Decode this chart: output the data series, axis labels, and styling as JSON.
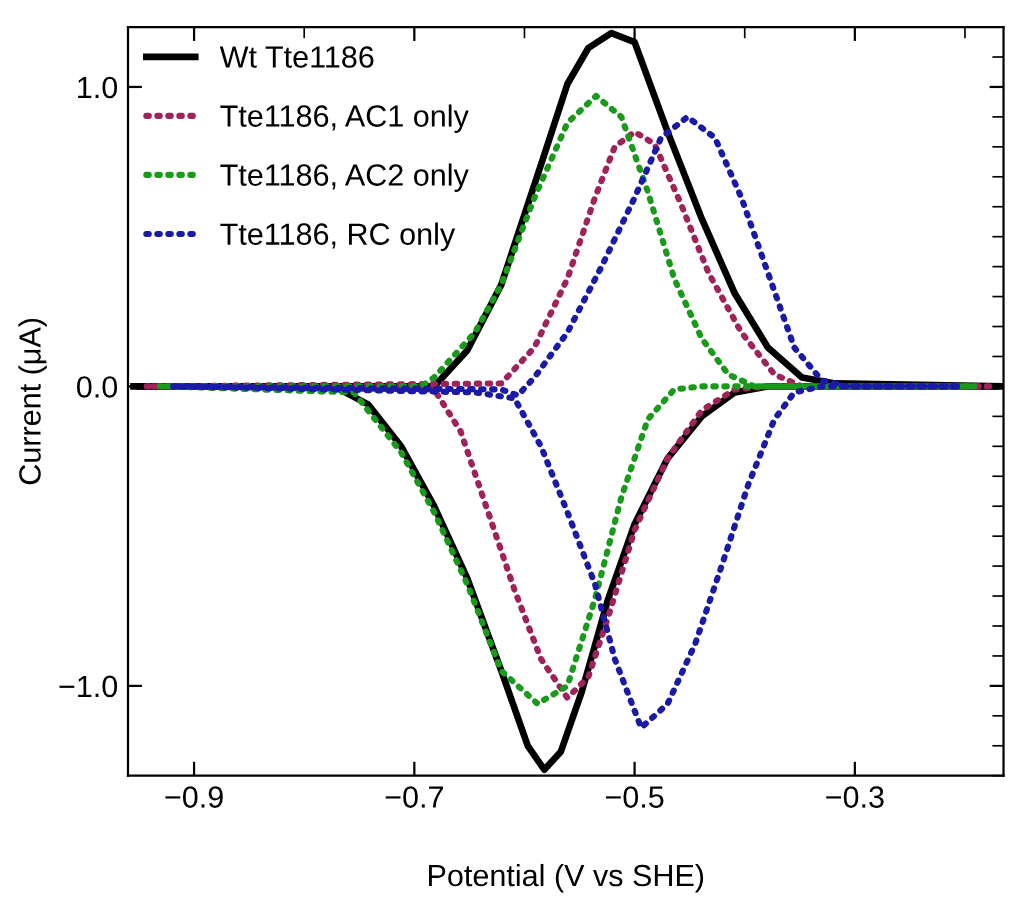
{
  "chart_data": {
    "type": "line",
    "xlabel": "Potential (V vs SHE)",
    "ylabel": "Current (μA)",
    "xlim": [
      -0.96,
      -0.165
    ],
    "ylim": [
      -1.3,
      1.2
    ],
    "xticks": [
      {
        "value": -0.9,
        "label": "−0.9"
      },
      {
        "value": -0.7,
        "label": "−0.7"
      },
      {
        "value": -0.5,
        "label": "−0.5"
      },
      {
        "value": -0.3,
        "label": "−0.3"
      }
    ],
    "yticks": [
      {
        "value": -1.0,
        "label": "−1.0"
      },
      {
        "value": 0.0,
        "label": "0.0"
      },
      {
        "value": 1.0,
        "label": "1.0"
      }
    ],
    "grid": false,
    "legend": "top left",
    "marker": "none",
    "series": [
      {
        "name": "Wt Tte1186",
        "color": "#000000",
        "line_style": "solid",
        "x": [
          -0.955,
          -0.682,
          -0.652,
          -0.621,
          -0.585,
          -0.561,
          -0.542,
          -0.521,
          -0.5,
          -0.47,
          -0.439,
          -0.409,
          -0.379,
          -0.348,
          -0.318,
          -0.166
        ],
        "values": [
          0,
          0,
          0.12,
          0.34,
          0.74,
          1.01,
          1.13,
          1.18,
          1.15,
          0.85,
          0.56,
          0.31,
          0.13,
          0.03,
          0.01,
          0
        ]
      },
      {
        "color": "#000000",
        "line_style": "solid",
        "x": [
          -0.949,
          -0.773,
          -0.742,
          -0.712,
          -0.682,
          -0.652,
          -0.621,
          -0.597,
          -0.582,
          -0.567,
          -0.548,
          -0.524,
          -0.5,
          -0.47,
          -0.439,
          -0.409,
          -0.379,
          -0.172
        ],
        "values": [
          0,
          0,
          -0.06,
          -0.2,
          -0.4,
          -0.64,
          -0.95,
          -1.2,
          -1.28,
          -1.22,
          -1.02,
          -0.71,
          -0.46,
          -0.24,
          -0.1,
          -0.02,
          0,
          0
        ]
      },
      {
        "name": "Tte1186, AC1 only",
        "color": "#a0225a",
        "line_style": "dotted",
        "x": [
          -0.943,
          -0.621,
          -0.591,
          -0.561,
          -0.536,
          -0.518,
          -0.5,
          -0.482,
          -0.458,
          -0.433,
          -0.403,
          -0.373,
          -0.348,
          -0.178
        ],
        "values": [
          0,
          0.01,
          0.13,
          0.36,
          0.63,
          0.8,
          0.85,
          0.81,
          0.61,
          0.38,
          0.18,
          0.04,
          0,
          0
        ]
      },
      {
        "color": "#a0225a",
        "line_style": "dotted",
        "x": [
          -0.937,
          -0.682,
          -0.658,
          -0.633,
          -0.609,
          -0.585,
          -0.561,
          -0.542,
          -0.524,
          -0.5,
          -0.47,
          -0.439,
          -0.409,
          -0.379,
          -0.184
        ],
        "values": [
          0,
          -0.01,
          -0.15,
          -0.42,
          -0.68,
          -0.91,
          -1.04,
          -0.97,
          -0.77,
          -0.48,
          -0.24,
          -0.08,
          -0.01,
          0,
          0
        ]
      },
      {
        "name": "Tte1186, AC2 only",
        "color": "#1a9a1a",
        "line_style": "dotted",
        "x": [
          -0.931,
          -0.694,
          -0.682,
          -0.645,
          -0.621,
          -0.591,
          -0.561,
          -0.535,
          -0.512,
          -0.488,
          -0.464,
          -0.439,
          -0.415,
          -0.391,
          -0.19
        ],
        "values": [
          0,
          0,
          0.03,
          0.18,
          0.34,
          0.63,
          0.88,
          0.97,
          0.9,
          0.65,
          0.36,
          0.16,
          0.04,
          0,
          0
        ]
      },
      {
        "color": "#1a9a1a",
        "line_style": "dotted",
        "x": [
          -0.925,
          -0.755,
          -0.712,
          -0.682,
          -0.652,
          -0.621,
          -0.588,
          -0.561,
          -0.536,
          -0.512,
          -0.488,
          -0.464,
          -0.439,
          -0.196
        ],
        "values": [
          0,
          -0.02,
          -0.22,
          -0.42,
          -0.66,
          -0.95,
          -1.06,
          -1.0,
          -0.71,
          -0.37,
          -0.11,
          -0.01,
          0,
          0
        ]
      },
      {
        "name": "Tte1186, RC only",
        "color": "#1a1aa6",
        "line_style": "dotted",
        "x": [
          -0.919,
          -0.621,
          -0.606,
          -0.591,
          -0.561,
          -0.53,
          -0.5,
          -0.476,
          -0.452,
          -0.427,
          -0.403,
          -0.379,
          -0.355,
          -0.33,
          -0.306,
          -0.202
        ],
        "values": [
          0,
          -0.01,
          -0.03,
          0.03,
          0.18,
          0.4,
          0.63,
          0.83,
          0.9,
          0.83,
          0.63,
          0.38,
          0.13,
          0.02,
          0,
          0
        ]
      },
      {
        "color": "#1a1aa6",
        "line_style": "dotted",
        "x": [
          -0.913,
          -0.645,
          -0.609,
          -0.585,
          -0.561,
          -0.536,
          -0.518,
          -0.494,
          -0.47,
          -0.445,
          -0.421,
          -0.397,
          -0.373,
          -0.355,
          -0.33,
          -0.208
        ],
        "values": [
          0,
          -0.02,
          -0.04,
          -0.2,
          -0.42,
          -0.66,
          -0.91,
          -1.14,
          -1.06,
          -0.86,
          -0.6,
          -0.33,
          -0.11,
          -0.02,
          0,
          0
        ]
      }
    ]
  }
}
